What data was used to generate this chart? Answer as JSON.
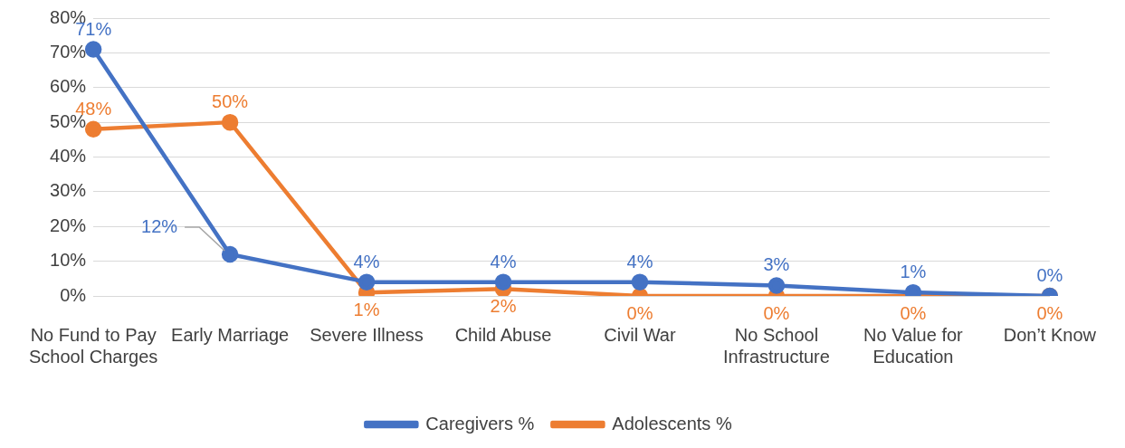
{
  "chart_data": {
    "type": "line",
    "categories": [
      "No Fund to Pay School Charges",
      "Early Marriage",
      "Severe Illness",
      "Child Abuse",
      "Civil War",
      "No School Infrastructure",
      "No Value for Education",
      "Don’t Know"
    ],
    "series": [
      {
        "name": "Caregivers %",
        "color": "#4472c4",
        "values": [
          71,
          12,
          4,
          4,
          4,
          3,
          1,
          0
        ],
        "value_labels": [
          "71%",
          "12%",
          "4%",
          "4%",
          "4%",
          "3%",
          "1%",
          "0%"
        ]
      },
      {
        "name": "Adolescents %",
        "color": "#ed7d31",
        "values": [
          48,
          50,
          1,
          2,
          0,
          0,
          0,
          0
        ],
        "value_labels": [
          "48%",
          "50%",
          "1%",
          "2%",
          "0%",
          "0%",
          "0%",
          "0%"
        ]
      }
    ],
    "ylim": [
      0,
      80
    ],
    "yticks": [
      {
        "value": 0,
        "label": "0%"
      },
      {
        "value": 10,
        "label": "10%"
      },
      {
        "value": 20,
        "label": "20%"
      },
      {
        "value": 30,
        "label": "30%"
      },
      {
        "value": 40,
        "label": "40%"
      },
      {
        "value": 50,
        "label": "50%"
      },
      {
        "value": 60,
        "label": "60%"
      },
      {
        "value": 70,
        "label": "70%"
      },
      {
        "value": 80,
        "label": "80%"
      }
    ],
    "grid": "y",
    "legend": "bottom",
    "marker": "circle",
    "line_style": "solid"
  }
}
